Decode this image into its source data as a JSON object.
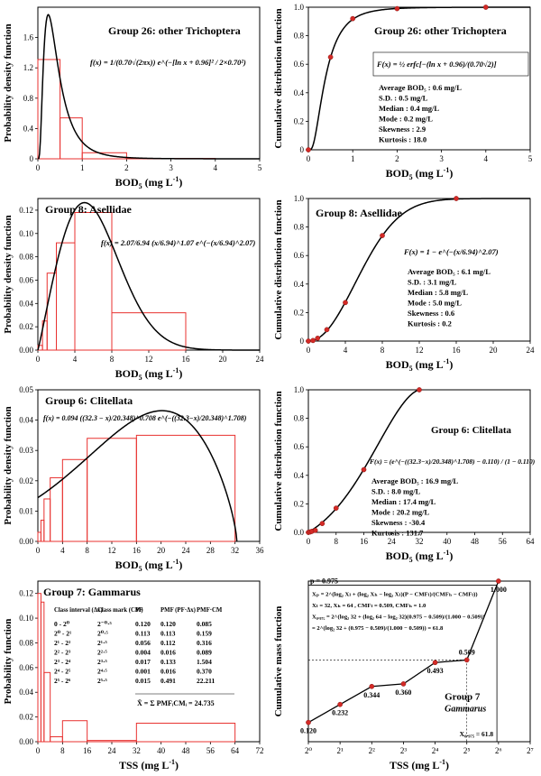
{
  "chart_data": [
    {
      "id": "p1",
      "type": "histogram+line",
      "group": "Group 26: other Trichoptera",
      "xlabel_main": "BOD",
      "xlabel_sub": "5",
      "xlabel_tail": " (mg L",
      "ylabel": "Probability density function",
      "xlim": [
        0,
        5
      ],
      "ylim": [
        0,
        2.0
      ],
      "xticks": [
        0,
        1,
        2,
        3,
        4,
        5
      ],
      "yticks": [
        0,
        0.4,
        0.8,
        1.2,
        1.6
      ],
      "ytick_labels": [
        "0",
        "0.4",
        "0.8",
        "1.2",
        "1.6"
      ],
      "bars": [
        [
          0,
          0.5,
          1.31
        ],
        [
          0.5,
          1.0,
          0.54
        ],
        [
          1.0,
          2.0,
          0.08
        ],
        [
          2.0,
          4.0,
          0.005
        ]
      ],
      "curve": {
        "kind": "lognormal",
        "mu": -0.96,
        "sigma": 0.7
      },
      "formula": "f(x) = 1/(0.70√(2πx)) e^(−[ln x + 0.96]² / 2×0.70²)"
    },
    {
      "id": "p2",
      "type": "cdf",
      "group": "Group 26: other Trichoptera",
      "xlabel_main": "BOD",
      "xlabel_sub": "5",
      "xlabel_tail": " (mg L",
      "ylabel": "Cumulative distribution function",
      "xlim": [
        0,
        5
      ],
      "ylim": [
        0,
        1.0
      ],
      "xticks": [
        0,
        1,
        2,
        3,
        4,
        5
      ],
      "yticks": [
        0,
        0.2,
        0.4,
        0.6,
        0.8,
        1.0
      ],
      "ytick_labels": [
        "0",
        "0.2",
        "0.4",
        "0.6",
        "0.8",
        "1.0"
      ],
      "points": [
        [
          0,
          0
        ],
        [
          0.5,
          0.65
        ],
        [
          1,
          0.92
        ],
        [
          2,
          0.99
        ],
        [
          4,
          1.0
        ]
      ],
      "curve": {
        "kind": "lognormal_cdf",
        "mu": -0.96,
        "sigma": 0.7
      },
      "formula": "F(x) = ½ erfc[−(ln x + 0.96)/(0.70√2)]",
      "stats": [
        "Average BOD₅ : 0.6 mg/L",
        "S.D. : 0.5 mg/L",
        "Median : 0.4 mg/L",
        "Mode : 0.2 mg/L",
        "Skewness : 2.9",
        "Kurtosis : 18.0"
      ]
    },
    {
      "id": "p3",
      "type": "histogram+line",
      "group": "Group 8: Asellidae",
      "xlabel_main": "BOD",
      "xlabel_sub": "5",
      "xlabel_tail": " (mg L",
      "ylabel": "Probability density function",
      "xlim": [
        0,
        24
      ],
      "ylim": [
        0,
        0.13
      ],
      "xticks": [
        0,
        4,
        8,
        12,
        16,
        20,
        24
      ],
      "yticks": [
        0,
        0.02,
        0.04,
        0.06,
        0.08,
        0.1,
        0.12
      ],
      "ytick_labels": [
        "0.00",
        "0.02",
        "0.04",
        "0.06",
        "0.08",
        "0.10",
        "0.12"
      ],
      "bars": [
        [
          0,
          0.5,
          0.004
        ],
        [
          0.5,
          1,
          0.025
        ],
        [
          1,
          2,
          0.066
        ],
        [
          2,
          4,
          0.092
        ],
        [
          4,
          8,
          0.118
        ],
        [
          8,
          16,
          0.032
        ]
      ],
      "curve": {
        "kind": "weibull",
        "k": 2.07,
        "lambda": 6.94
      },
      "formula": "f(x) = 2.07/6.94 (x/6.94)^1.07 e^(−(x/6.94)^2.07)"
    },
    {
      "id": "p4",
      "type": "cdf",
      "group": "Group 8: Asellidae",
      "xlabel_main": "BOD",
      "xlabel_sub": "5",
      "xlabel_tail": " (mg L",
      "ylabel": "Cumulative distribution function",
      "xlim": [
        0,
        24
      ],
      "ylim": [
        0,
        1.0
      ],
      "xticks": [
        0,
        4,
        8,
        12,
        16,
        20,
        24
      ],
      "yticks": [
        0,
        0.2,
        0.4,
        0.6,
        0.8,
        1.0
      ],
      "ytick_labels": [
        "0",
        "0.2",
        "0.4",
        "0.6",
        "0.8",
        "1.0"
      ],
      "points": [
        [
          0,
          0
        ],
        [
          0.5,
          0.004
        ],
        [
          1,
          0.02
        ],
        [
          2,
          0.08
        ],
        [
          4,
          0.27
        ],
        [
          8,
          0.74
        ],
        [
          16,
          1.0
        ]
      ],
      "curve": {
        "kind": "weibull_cdf",
        "k": 2.07,
        "lambda": 6.94
      },
      "formula": "F(x) = 1 − e^(−(x/6.94)^2.07)",
      "stats": [
        "Average BOD₅ : 6.1 mg/L",
        "S.D. : 3.1 mg/L",
        "Median : 5.8 mg/L",
        "Mode : 5.0 mg/L",
        "Skewness : 0.6",
        "Kurtosis : 0.2"
      ]
    },
    {
      "id": "p5",
      "type": "histogram+line",
      "group": "Group 6: Clitellata",
      "xlabel_main": "BOD",
      "xlabel_sub": "5",
      "xlabel_tail": " (mg L",
      "ylabel": "Probability density function",
      "xlim": [
        0,
        36
      ],
      "ylim": [
        0,
        0.05
      ],
      "xticks": [
        0,
        4,
        8,
        12,
        16,
        20,
        24,
        28,
        32,
        36
      ],
      "yticks": [
        0,
        0.01,
        0.02,
        0.03,
        0.04,
        0.05
      ],
      "ytick_labels": [
        "0.00",
        "0.01",
        "0.02",
        "0.03",
        "0.04",
        "0.05"
      ],
      "bars": [
        [
          0,
          0.5,
          0.003
        ],
        [
          0.5,
          1,
          0.007
        ],
        [
          1,
          2,
          0.014
        ],
        [
          2,
          4,
          0.021
        ],
        [
          4,
          8,
          0.027
        ],
        [
          8,
          16,
          0.034
        ],
        [
          16,
          32,
          0.035
        ]
      ],
      "curve": {
        "kind": "reverse_weibull",
        "a": 32.3,
        "k": 1.708,
        "lambda": 20.348,
        "c": 0.094
      },
      "formula": "f(x) = 0.094 ((32.3 − x)/20.348)^0.708 e^(−((32.3−x)/20.348)^1.708)"
    },
    {
      "id": "p6",
      "type": "cdf",
      "group": "Group 6: Clitellata",
      "xlabel_main": "BOD",
      "xlabel_sub": "5",
      "xlabel_tail": " (mg L",
      "ylabel": "Cumulative distribution function",
      "xlim": [
        0,
        64
      ],
      "ylim": [
        0,
        1.0
      ],
      "xticks": [
        0,
        8,
        16,
        24,
        32,
        40,
        48,
        56,
        64
      ],
      "yticks": [
        0,
        0.2,
        0.4,
        0.6,
        0.8,
        1.0
      ],
      "ytick_labels": [
        "0.0",
        "0.2",
        "0.4",
        "0.6",
        "0.8",
        "1.0"
      ],
      "points": [
        [
          0,
          0
        ],
        [
          0.5,
          0.003
        ],
        [
          1,
          0.007
        ],
        [
          2,
          0.014
        ],
        [
          4,
          0.062
        ],
        [
          8,
          0.17
        ],
        [
          16,
          0.44
        ],
        [
          32,
          1.0
        ]
      ],
      "curve": {
        "kind": "reverse_weibull_cdf",
        "a": 32.3,
        "k": 1.708,
        "lambda": 20.348,
        "c": 0.11
      },
      "formula": "F(x) = (e^(−((32.3−x)/20.348)^1.708) − 0.110) / (1 − 0.110)",
      "stats": [
        "Average BOD₅ : 16.9 mg/L",
        "S.D. : 8.0 mg/L",
        "Median : 17.4 mg/L",
        "Mode : 20.2 mg/L",
        "Skewness : -30.4",
        "Kurtosis : 131.7"
      ]
    },
    {
      "id": "p7",
      "type": "histogram",
      "group": "Group 7: Gammarus",
      "xlabel": "TSS (mg L",
      "ylabel": "Probability function",
      "xlim": [
        0,
        72
      ],
      "ylim": [
        0,
        0.13
      ],
      "xticks": [
        0,
        8,
        16,
        24,
        32,
        40,
        48,
        56,
        64,
        72
      ],
      "yticks": [
        0,
        0.02,
        0.04,
        0.06,
        0.08,
        0.1,
        0.12
      ],
      "ytick_labels": [
        "0.00",
        "0.02",
        "0.04",
        "0.06",
        "0.08",
        "0.10",
        "0.12"
      ],
      "bars": [
        [
          0,
          1,
          0.12
        ],
        [
          1,
          2,
          0.113
        ],
        [
          2,
          4,
          0.056
        ],
        [
          4,
          8,
          0.004
        ],
        [
          8,
          16,
          0.017
        ],
        [
          16,
          32,
          0.001
        ],
        [
          32,
          64,
          0.015
        ]
      ],
      "table": {
        "headers": [
          "Class interval (Δx)",
          "Class mark (CM)",
          "PF",
          "PMF (PF·Δx)",
          "PMF·CM"
        ],
        "rows": [
          [
            "0 - 2⁰",
            "2⁻⁰·⁵",
            "0.120",
            "0.120",
            "0.085"
          ],
          [
            "2⁰ - 2¹",
            "2⁰·⁵",
            "0.113",
            "0.113",
            "0.159"
          ],
          [
            "2¹ - 2²",
            "2¹·⁵",
            "0.056",
            "0.112",
            "0.316"
          ],
          [
            "2² - 2³",
            "2²·⁵",
            "0.004",
            "0.016",
            "0.089"
          ],
          [
            "2³ - 2⁴",
            "2³·⁵",
            "0.017",
            "0.133",
            "1.504"
          ],
          [
            "2⁴ - 2⁵",
            "2⁴·⁵",
            "0.001",
            "0.016",
            "0.370"
          ],
          [
            "2⁵ - 2⁶",
            "2⁵·⁵",
            "0.015",
            "0.491",
            "22.211"
          ]
        ],
        "footer": "X̄ = Σ PMFᵢCMᵢ = 24.735"
      }
    },
    {
      "id": "p8",
      "type": "line",
      "group": "Group 7",
      "species": "Gammarus",
      "xlabel": "TSS (mg L",
      "ylabel": "Cumulative mass function",
      "xlim": [
        0,
        7
      ],
      "ylim": [
        0,
        1.0
      ],
      "xticks": [
        0,
        1,
        2,
        3,
        4,
        5,
        6,
        7
      ],
      "xtick_labels": [
        "2⁰",
        "2¹",
        "2²",
        "2³",
        "2⁴",
        "2⁵",
        "2⁶",
        "2⁷"
      ],
      "points": [
        [
          0,
          0.12
        ],
        [
          1,
          0.232
        ],
        [
          2,
          0.344
        ],
        [
          3,
          0.36
        ],
        [
          4,
          0.493
        ],
        [
          5,
          0.509
        ],
        [
          6,
          1.0
        ]
      ],
      "point_labels": [
        "0.120",
        "0.232",
        "0.344",
        "0.360",
        "0.493",
        "0.509",
        "1.000"
      ],
      "p_label": "p = 0.975",
      "x975_label": "X₀.₉₇₅ = 61.8",
      "formula_lines": [
        "Xₚ = 2^(log₂ Xₗ + (log₂ Xₕ − log₂ Xₗ)(P − CMFₗ)/(CMFₕ − CMFₗ))",
        "Xₗ = 32, Xₕ = 64 , CMFₗ = 0.509, CMFₕ = 1.0",
        "X₀.₉₇₅ = 2^(log₂ 32 + (log₂ 64 − log₂ 32)(0.975 − 0.509)/(1.000 − 0.509))",
        "= 2^(log₂ 32 + (0.975 − 0.509)/(1.000 − 0.509)) = 61.8"
      ]
    }
  ],
  "colors": {
    "bar": "#e8312f",
    "point": "#d42a26",
    "line": "#000000",
    "frame": "#000000"
  }
}
